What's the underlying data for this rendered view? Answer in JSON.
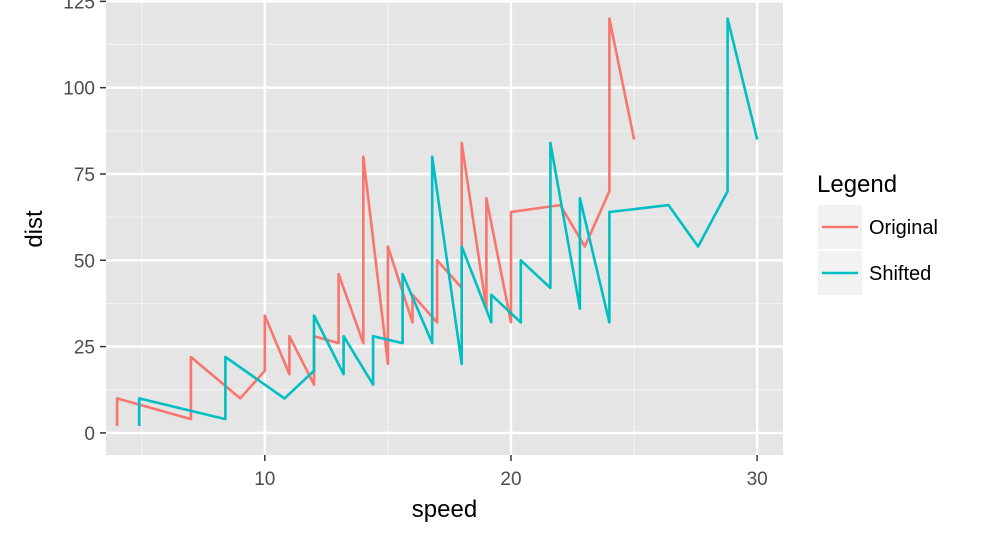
{
  "chart_data": {
    "type": "line",
    "title": "",
    "xlabel": "speed",
    "ylabel": "dist",
    "xlim": [
      3.55,
      31.05
    ],
    "ylim": [
      -6.4,
      125.4
    ],
    "x_ticks": [
      10,
      20,
      30
    ],
    "x_minor_ticks": [
      5,
      15,
      25
    ],
    "y_ticks": [
      0,
      25,
      50,
      75,
      100,
      125
    ],
    "y_minor_ticks": [
      12.5,
      37.5,
      62.5,
      87.5,
      112.5
    ],
    "grid": true,
    "legend": {
      "title": "Legend",
      "placement": "right"
    },
    "background": "#e5e5e5",
    "series": [
      {
        "name": "Original",
        "color": "#f8766d",
        "x": [
          4,
          4,
          7,
          7,
          8,
          9,
          10,
          10,
          10,
          11,
          11,
          12,
          12,
          12,
          12,
          13,
          13,
          13,
          13,
          14,
          14,
          14,
          14,
          15,
          15,
          15,
          16,
          16,
          17,
          17,
          17,
          18,
          18,
          18,
          18,
          19,
          19,
          19,
          20,
          20,
          20,
          20,
          20,
          22,
          23,
          24,
          24,
          24,
          24,
          25
        ],
        "y": [
          2,
          10,
          4,
          22,
          16,
          10,
          18,
          26,
          34,
          17,
          28,
          14,
          20,
          24,
          28,
          26,
          34,
          34,
          46,
          26,
          36,
          60,
          80,
          20,
          26,
          54,
          32,
          40,
          32,
          40,
          50,
          42,
          56,
          76,
          84,
          36,
          46,
          68,
          32,
          48,
          52,
          56,
          64,
          66,
          54,
          70,
          92,
          93,
          120,
          85
        ]
      },
      {
        "name": "Shifted",
        "color": "#00bfc4",
        "x": [
          4.9,
          4.9,
          8.4,
          8.4,
          9.6,
          10.8,
          12.0,
          12.0,
          12.0,
          13.2,
          13.2,
          14.4,
          14.4,
          14.4,
          14.4,
          15.6,
          15.6,
          15.6,
          15.6,
          16.8,
          16.8,
          16.8,
          16.8,
          18.0,
          18.0,
          18.0,
          19.2,
          19.2,
          20.4,
          20.4,
          20.4,
          21.6,
          21.6,
          21.6,
          21.6,
          22.8,
          22.8,
          22.8,
          24.0,
          24.0,
          24.0,
          24.0,
          24.0,
          26.4,
          27.6,
          28.8,
          28.8,
          28.8,
          28.8,
          30.0
        ],
        "y": [
          2,
          10,
          4,
          22,
          16,
          10,
          18,
          26,
          34,
          17,
          28,
          14,
          20,
          24,
          28,
          26,
          34,
          34,
          46,
          26,
          36,
          60,
          80,
          20,
          26,
          54,
          32,
          40,
          32,
          40,
          50,
          42,
          56,
          76,
          84,
          36,
          46,
          68,
          32,
          48,
          52,
          56,
          64,
          66,
          54,
          70,
          92,
          93,
          120,
          85
        ]
      }
    ]
  }
}
